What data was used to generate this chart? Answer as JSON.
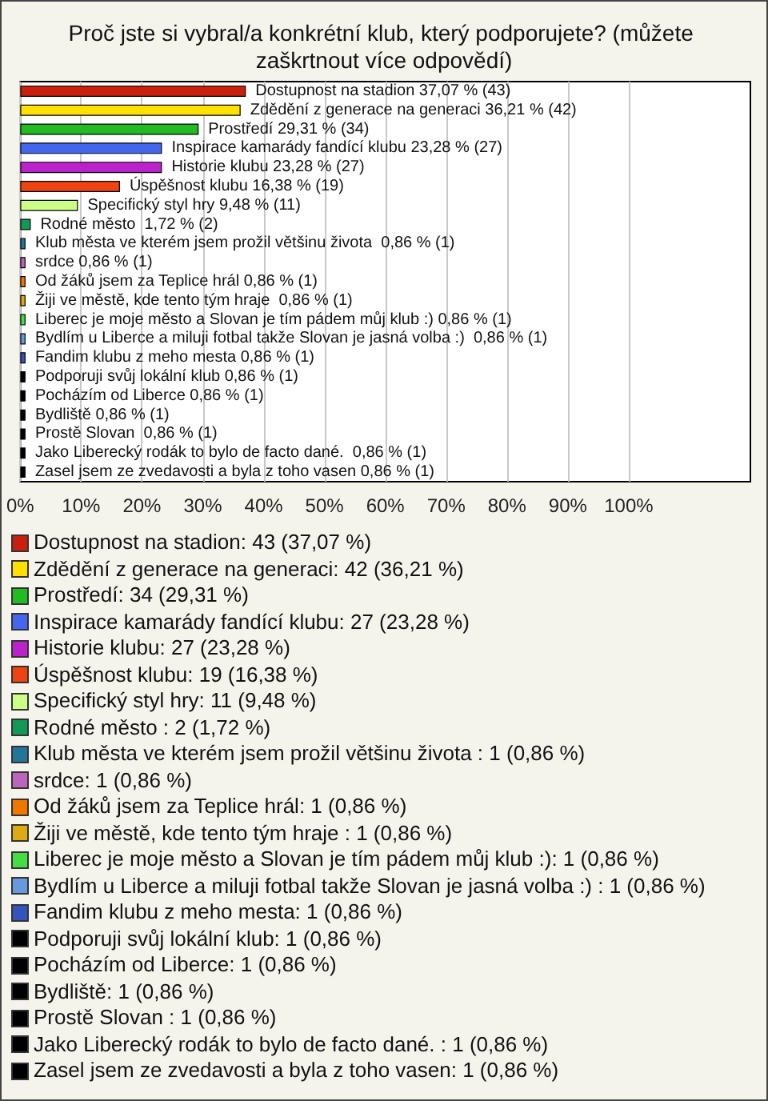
{
  "chart_data": {
    "type": "bar",
    "orientation": "horizontal",
    "title": "Proč jste si vybral/a konkrétní klub, který podporujete? (můžete zaškrtnout více odpovědí)",
    "categories": [
      null,
      null,
      null,
      null,
      null,
      null,
      null,
      null,
      null,
      null,
      null,
      null,
      null,
      null,
      null,
      null,
      null,
      null,
      null,
      null,
      null
    ],
    "values": [
      37.07,
      36.21,
      29.31,
      23.28,
      23.28,
      16.38,
      9.48,
      1.72,
      0.86,
      0.86,
      0.86,
      0.86,
      0.86,
      0.86,
      0.86,
      0.86,
      0.86,
      0.86,
      0.86,
      0.86,
      0.86
    ],
    "colors": [
      "#c8200c",
      "#ffe000",
      "#22bb22",
      "#4466ee",
      "#bb22cc",
      "#ee4411",
      "#ccff88",
      "#119955",
      "#227799",
      "#bb66bb",
      "#ee7700",
      "#ddaa11",
      "#44dd44",
      "#6699dd",
      "#3355bb",
      "#000000",
      "#000000",
      "#000000",
      "#000000",
      "#000000",
      "#000000"
    ],
    "value_labels": [
      "Dostupnost na stadion 37,07 % (43)",
      "Zdědění z generace na generaci 36,21 % (42)",
      "Prostředí 29,31 % (34)",
      "Inspirace kamarády fandící klubu 23,28 % (27)",
      "Historie klubu 23,28 % (27)",
      "Úspěšnost klubu 16,38 % (19)",
      "Specifický styl hry 9,48 % (11)",
      "Rodné město  1,72 % (2)",
      "Klub města ve kterém jsem prožil většinu života  0,86 % (1)",
      "srdce 0,86 % (1)",
      "Od žáků jsem za Teplice hrál 0,86 % (1)",
      "Žiji ve městě, kde tento tým hraje  0,86 % (1)",
      "Liberec je moje město a Slovan je tím pádem můj klub :) 0,86 % (1)",
      "Bydlím u Liberce a miluji fotbal takže Slovan je jasná volba :)  0,86 % (1)",
      "Fandim klubu z meho mesta 0,86 % (1)",
      "Podporuji svůj lokální klub 0,86 % (1)",
      "Pocházím od Liberce 0,86 % (1)",
      "Bydliště 0,86 % (1)",
      "Prostě Slovan  0,86 % (1)",
      "Jako Liberecký rodák to bylo de facto dané.  0,86 % (1)",
      "Zasel jsem ze zvedavosti a byla z toho vasen 0,86 % (1)"
    ],
    "annotations": [
      "Dostupnost na stadion: 43 (37,07 %)",
      "Zdědění z generace na generaci: 42 (36,21 %)",
      "Prostředí: 34 (29,31 %)",
      "Inspirace kamarády fandící klubu: 27 (23,28 %)",
      "Historie klubu: 27 (23,28 %)",
      "Úspěšnost klubu: 19 (16,38 %)",
      "Specifický styl hry: 11 (9,48 %)",
      "Rodné město : 2 (1,72 %)",
      "Klub města ve kterém jsem prožil většinu života : 1 (0,86 %)",
      "srdce: 1 (0,86 %)",
      "Od žáků jsem za Teplice hrál: 1 (0,86 %)",
      "Žiji ve městě, kde tento tým hraje : 1 (0,86 %)",
      "Liberec je moje město a Slovan je tím pádem můj klub :): 1 (0,86 %)",
      "Bydlím u Liberce a miluji fotbal takže Slovan je jasná volba :) : 1 (0,86 %)",
      "Fandim klubu z meho mesta: 1 (0,86 %)",
      "Podporuji svůj lokální klub: 1 (0,86 %)",
      "Pocházím od Liberce: 1 (0,86 %)",
      "Bydliště: 1 (0,86 %)",
      "Prostě Slovan : 1 (0,86 %)",
      "Jako Liberecký rodák to bylo de facto dané. : 1 (0,86 %)",
      "Zasel jsem ze zvedavosti a byla z toho vasen: 1 (0,86 %)"
    ],
    "xlim": [
      0,
      120
    ],
    "xticks": [
      {
        "value": 0,
        "label": "0%"
      },
      {
        "value": 10,
        "label": "10%"
      },
      {
        "value": 20,
        "label": "20%"
      },
      {
        "value": 30,
        "label": "30%"
      },
      {
        "value": 40,
        "label": "40%"
      },
      {
        "value": 50,
        "label": "50%"
      },
      {
        "value": 60,
        "label": "60%"
      },
      {
        "value": 70,
        "label": "70%"
      },
      {
        "value": 80,
        "label": "80%"
      },
      {
        "value": 90,
        "label": "90%"
      },
      {
        "value": 100,
        "label": "100%"
      }
    ],
    "grid": "x"
  }
}
